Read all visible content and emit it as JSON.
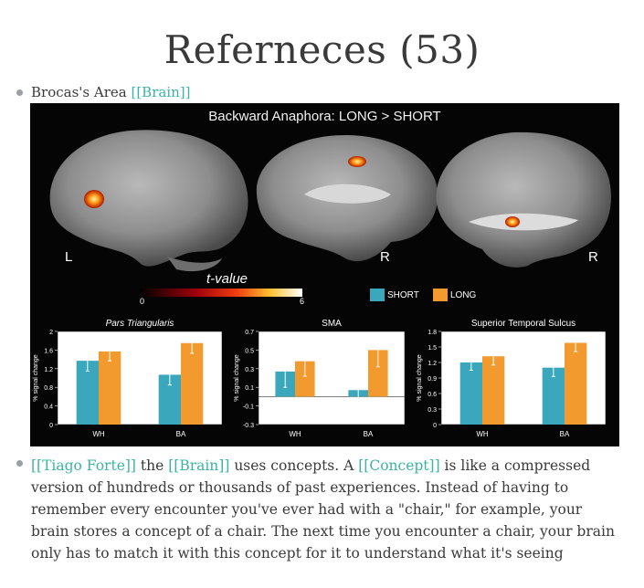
{
  "page_title": "Referneces (53)",
  "item1": {
    "text": "Brocas's Area",
    "link": "[[Brain]]"
  },
  "figure": {
    "title": "Backward Anaphora: LONG > SHORT",
    "brain_labels": [
      "L",
      "R",
      "R"
    ],
    "colorbar": {
      "label": "t-value",
      "min": "0",
      "max": "6"
    },
    "legend": [
      "SHORT",
      "LONG"
    ],
    "colors": {
      "short": "#3aa7bd",
      "long": "#f29a2e",
      "background": "#050505"
    }
  },
  "chart_data": [
    {
      "type": "bar",
      "title": "Pars Triangularis",
      "ylabel": "% signal change",
      "categories": [
        "WH",
        "BA"
      ],
      "series": [
        {
          "name": "SHORT",
          "values": [
            1.37,
            1.07
          ],
          "errors": [
            0.22,
            0.22
          ]
        },
        {
          "name": "LONG",
          "values": [
            1.57,
            1.75
          ],
          "errors": [
            0.2,
            0.22
          ]
        }
      ],
      "ylim": [
        0,
        2
      ],
      "yticks": [
        "0",
        "0.4",
        "0.8",
        "1.2",
        "1.6",
        "2"
      ]
    },
    {
      "type": "bar",
      "title": "SMA",
      "ylabel": "% signal change",
      "categories": [
        "WH",
        "BA"
      ],
      "series": [
        {
          "name": "SHORT",
          "values": [
            0.27,
            0.07
          ],
          "errors": [
            0.17,
            0.18
          ]
        },
        {
          "name": "LONG",
          "values": [
            0.38,
            0.5
          ],
          "errors": [
            0.16,
            0.18
          ]
        }
      ],
      "ylim": [
        -0.3,
        0.7
      ],
      "yticks": [
        "-0.3",
        "-0.1",
        "0.1",
        "0.3",
        "0.5",
        "0.7"
      ]
    },
    {
      "type": "bar",
      "title": "Superior Temporal Sulcus",
      "ylabel": "% signal change",
      "categories": [
        "WH",
        "BA"
      ],
      "series": [
        {
          "name": "SHORT",
          "values": [
            1.2,
            1.1
          ],
          "errors": [
            0.15,
            0.17
          ]
        },
        {
          "name": "LONG",
          "values": [
            1.32,
            1.58
          ],
          "errors": [
            0.17,
            0.17
          ]
        }
      ],
      "ylim": [
        0,
        1.8
      ],
      "yticks": [
        "0",
        "0.3",
        "0.6",
        "0.9",
        "1.2",
        "1.5",
        "1.8"
      ]
    }
  ],
  "item2": {
    "link1": "[[Tiago Forte]]",
    "t1": " the ",
    "link2": "[[Brain]]",
    "t2": " uses concepts. A ",
    "link3": "[[Concept]]",
    "t3": " is like a compressed version of hundreds or thousands of past experiences. Instead of having to remember every encounter you've ever had with a \"chair,\" for example, your brain stores a concept of a chair. The next time you encounter a chair, your brain only has to match it with this concept for it to understand what it's seeing"
  }
}
